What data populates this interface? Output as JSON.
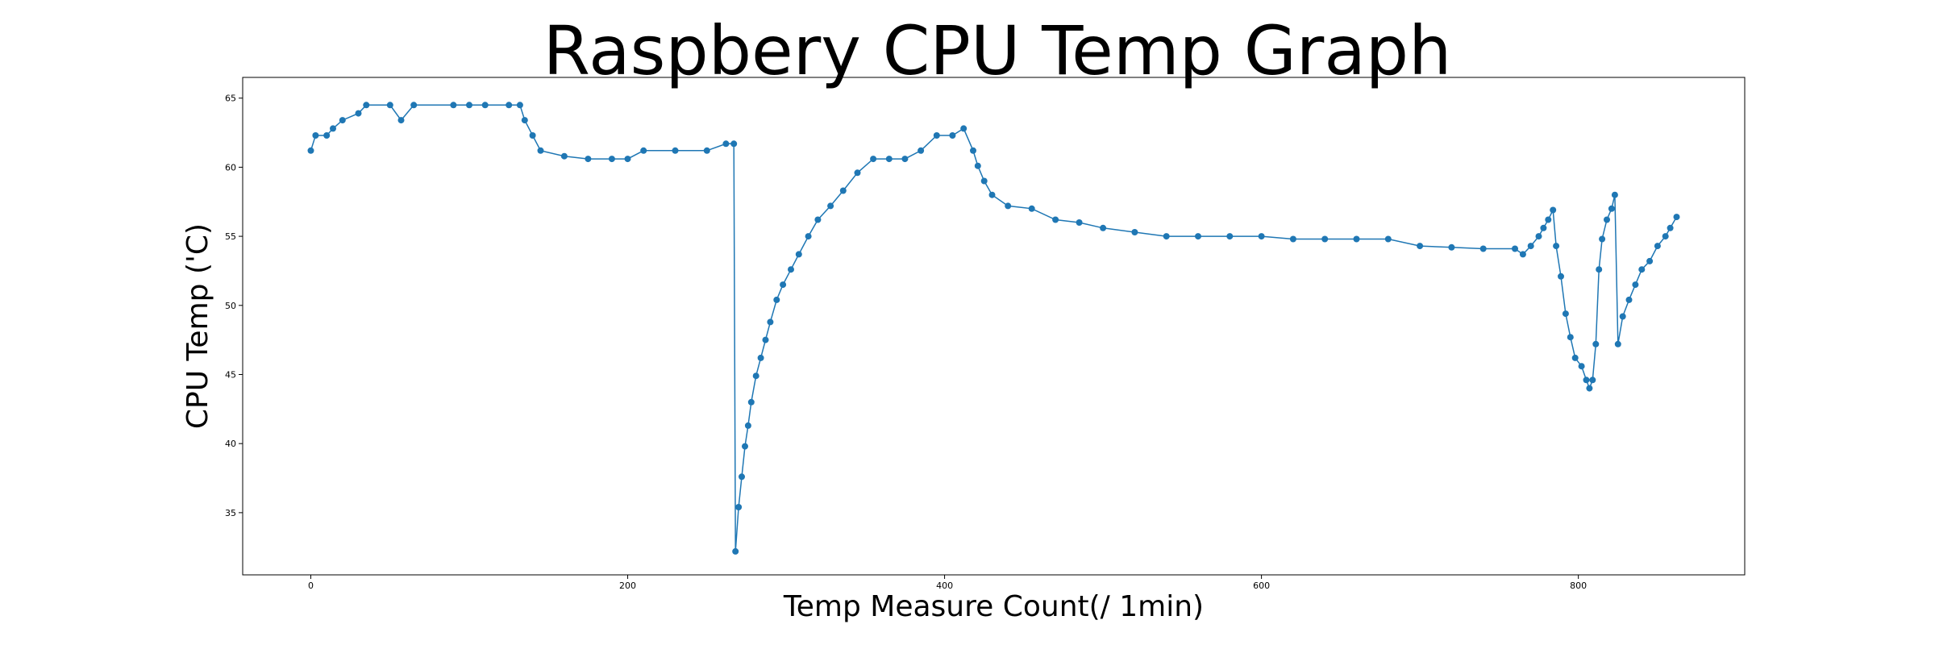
{
  "chart_data": {
    "type": "line",
    "title": "Raspbery CPU Temp Graph",
    "xlabel": "Temp Measure Count(/ 1min)",
    "ylabel": "CPU Temp ('C)",
    "xlim": [
      -43,
      905
    ],
    "ylim": [
      30.5,
      66.5
    ],
    "xticks": [
      0,
      200,
      400,
      600,
      800
    ],
    "yticks": [
      35,
      40,
      45,
      50,
      55,
      60,
      65
    ],
    "grid": false,
    "legend": "none",
    "marker": "circle",
    "series": [
      {
        "color": "#1f77b4",
        "points": [
          [
            0,
            61.2
          ],
          [
            3,
            62.3
          ],
          [
            10,
            62.3
          ],
          [
            14,
            62.8
          ],
          [
            20,
            63.4
          ],
          [
            30,
            63.9
          ],
          [
            35,
            64.5
          ],
          [
            50,
            64.5
          ],
          [
            57,
            63.4
          ],
          [
            65,
            64.5
          ],
          [
            90,
            64.5
          ],
          [
            100,
            64.5
          ],
          [
            110,
            64.5
          ],
          [
            125,
            64.5
          ],
          [
            132,
            64.5
          ],
          [
            135,
            63.4
          ],
          [
            140,
            62.3
          ],
          [
            145,
            61.2
          ],
          [
            160,
            60.8
          ],
          [
            175,
            60.6
          ],
          [
            190,
            60.6
          ],
          [
            200,
            60.6
          ],
          [
            210,
            61.2
          ],
          [
            230,
            61.2
          ],
          [
            250,
            61.2
          ],
          [
            262,
            61.7
          ],
          [
            267,
            61.7
          ],
          [
            268,
            32.2
          ],
          [
            270,
            35.4
          ],
          [
            272,
            37.6
          ],
          [
            274,
            39.8
          ],
          [
            276,
            41.3
          ],
          [
            278,
            43.0
          ],
          [
            281,
            44.9
          ],
          [
            284,
            46.2
          ],
          [
            287,
            47.5
          ],
          [
            290,
            48.8
          ],
          [
            294,
            50.4
          ],
          [
            298,
            51.5
          ],
          [
            303,
            52.6
          ],
          [
            308,
            53.7
          ],
          [
            314,
            55.0
          ],
          [
            320,
            56.2
          ],
          [
            328,
            57.2
          ],
          [
            336,
            58.3
          ],
          [
            345,
            59.6
          ],
          [
            355,
            60.6
          ],
          [
            365,
            60.6
          ],
          [
            375,
            60.6
          ],
          [
            385,
            61.2
          ],
          [
            395,
            62.3
          ],
          [
            405,
            62.3
          ],
          [
            412,
            62.8
          ],
          [
            418,
            61.2
          ],
          [
            421,
            60.1
          ],
          [
            425,
            59.0
          ],
          [
            430,
            58.0
          ],
          [
            440,
            57.2
          ],
          [
            455,
            57.0
          ],
          [
            470,
            56.2
          ],
          [
            485,
            56.0
          ],
          [
            500,
            55.6
          ],
          [
            520,
            55.3
          ],
          [
            540,
            55.0
          ],
          [
            560,
            55.0
          ],
          [
            580,
            55.0
          ],
          [
            600,
            55.0
          ],
          [
            620,
            54.8
          ],
          [
            640,
            54.8
          ],
          [
            660,
            54.8
          ],
          [
            680,
            54.8
          ],
          [
            700,
            54.3
          ],
          [
            720,
            54.2
          ],
          [
            740,
            54.1
          ],
          [
            760,
            54.1
          ],
          [
            765,
            53.7
          ],
          [
            770,
            54.3
          ],
          [
            775,
            55.0
          ],
          [
            778,
            55.6
          ],
          [
            781,
            56.2
          ],
          [
            784,
            56.9
          ],
          [
            786,
            54.3
          ],
          [
            789,
            52.1
          ],
          [
            792,
            49.4
          ],
          [
            795,
            47.7
          ],
          [
            798,
            46.2
          ],
          [
            802,
            45.6
          ],
          [
            805,
            44.6
          ],
          [
            807,
            44.0
          ],
          [
            809,
            44.6
          ],
          [
            811,
            47.2
          ],
          [
            813,
            52.6
          ],
          [
            815,
            54.8
          ],
          [
            818,
            56.2
          ],
          [
            821,
            57.0
          ],
          [
            823,
            58.0
          ],
          [
            825,
            47.2
          ],
          [
            828,
            49.2
          ],
          [
            832,
            50.4
          ],
          [
            836,
            51.5
          ],
          [
            840,
            52.6
          ],
          [
            845,
            53.2
          ],
          [
            850,
            54.3
          ],
          [
            855,
            55.0
          ],
          [
            858,
            55.6
          ],
          [
            862,
            56.4
          ]
        ]
      }
    ]
  }
}
